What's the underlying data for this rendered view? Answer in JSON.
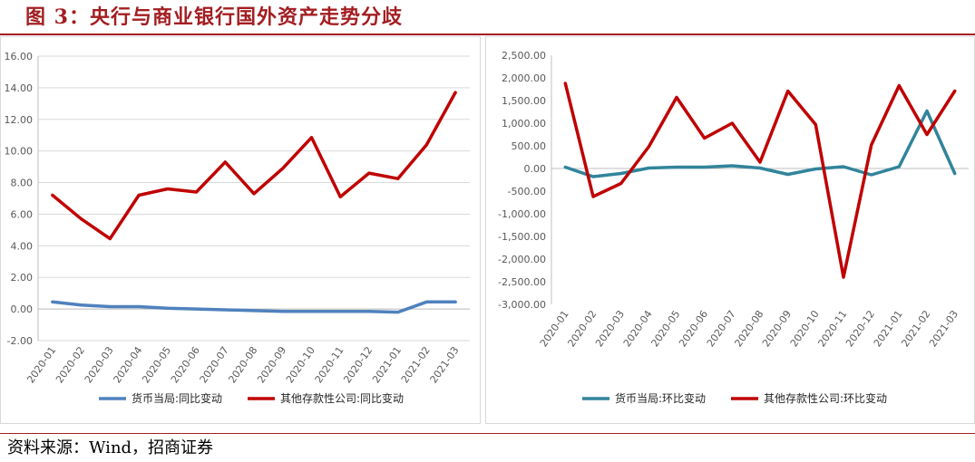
{
  "title": "图 3：央行与商业银行国外资产走势分歧",
  "source": "资料来源：Wind，招商证券",
  "chart_data": [
    {
      "type": "line",
      "categories": [
        "2020-01",
        "2020-02",
        "2020-03",
        "2020-04",
        "2020-05",
        "2020-06",
        "2020-07",
        "2020-08",
        "2020-09",
        "2020-10",
        "2020-11",
        "2020-12",
        "2021-01",
        "2021-02",
        "2021-03"
      ],
      "ylim": [
        -2,
        16
      ],
      "yticks": [
        -2,
        0,
        2,
        4,
        6,
        8,
        10,
        12,
        14,
        16
      ],
      "ytick_labels": [
        "-2.00",
        "0.00",
        "2.00",
        "4.00",
        "6.00",
        "8.00",
        "10.00",
        "12.00",
        "14.00",
        "16.00"
      ],
      "grid": true,
      "legend_position": "bottom",
      "series": [
        {
          "name": "货币当局:同比变动",
          "color": "#4f81bd",
          "values": [
            0.45,
            0.25,
            0.15,
            0.15,
            0.05,
            0.0,
            -0.05,
            -0.1,
            -0.15,
            -0.15,
            -0.15,
            -0.15,
            -0.2,
            0.45,
            0.45
          ]
        },
        {
          "name": "其他存款性公司:同比变动",
          "color": "#c00000",
          "values": [
            7.2,
            5.7,
            4.45,
            7.2,
            7.6,
            7.4,
            9.3,
            7.3,
            8.9,
            10.85,
            7.1,
            8.6,
            8.25,
            10.4,
            13.7
          ]
        }
      ]
    },
    {
      "type": "line",
      "categories": [
        "2020-01",
        "2020-02",
        "2020-03",
        "2020-04",
        "2020-05",
        "2020-06",
        "2020-07",
        "2020-08",
        "2020-09",
        "2020-10",
        "2020-11",
        "2020-12",
        "2021-01",
        "2021-02",
        "2021-03"
      ],
      "ylim": [
        -3000,
        2500
      ],
      "yticks": [
        -3000,
        -2500,
        -2000,
        -1500,
        -1000,
        -500,
        0,
        500,
        1000,
        1500,
        2000,
        2500
      ],
      "ytick_labels": [
        "-3,000.00",
        "-2,500.00",
        "-2,000.00",
        "-1,500.00",
        "-1,000.00",
        "-500.00",
        "0.00",
        "500.00",
        "1,000.00",
        "1,500.00",
        "2,000.00",
        "2,500.00"
      ],
      "grid": false,
      "legend_position": "bottom",
      "series": [
        {
          "name": "货币当局:环比变动",
          "color": "#31849b",
          "values": [
            30,
            -180,
            -110,
            10,
            30,
            30,
            60,
            10,
            -130,
            -10,
            40,
            -140,
            40,
            1270,
            -110
          ]
        },
        {
          "name": "其他存款性公司:环比变动",
          "color": "#c00000",
          "values": [
            1880,
            -620,
            -330,
            480,
            1570,
            670,
            1000,
            140,
            1710,
            970,
            -2400,
            520,
            1830,
            750,
            1710
          ]
        }
      ]
    }
  ]
}
